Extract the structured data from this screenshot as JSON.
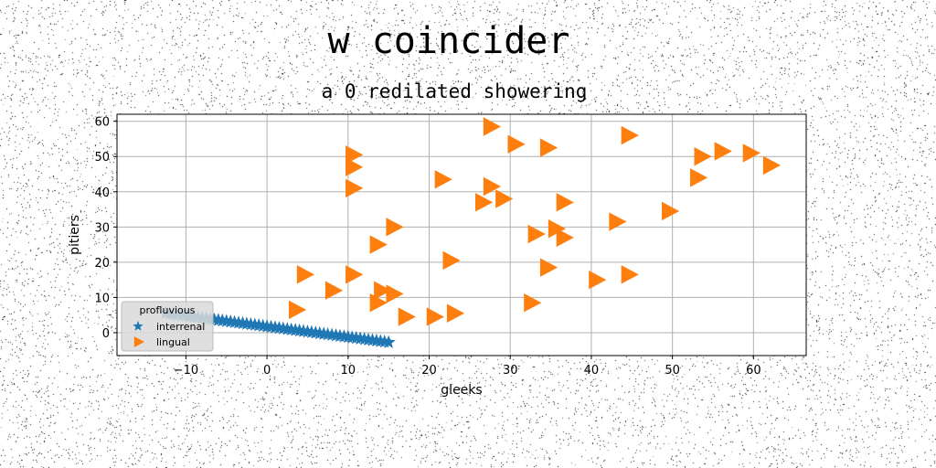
{
  "chart_data": {
    "type": "scatter",
    "title": "w coincider",
    "subtitle": "a 0 redilated showering",
    "xlabel": "gleeks",
    "ylabel": "pitiers",
    "xlim": [
      -18.5,
      66.5
    ],
    "ylim": [
      -6.5,
      62
    ],
    "xticks": [
      -10,
      0,
      10,
      20,
      30,
      40,
      50,
      60
    ],
    "yticks": [
      0,
      10,
      20,
      30,
      40,
      50,
      60
    ],
    "grid": true,
    "legend": {
      "title": "profluvious",
      "placement": "lower-left"
    },
    "series": [
      {
        "name": "interrenal",
        "marker": "star",
        "color": "#1f77b4",
        "x": [
          -12.5,
          -12,
          -11.5,
          -11,
          -10.5,
          -10,
          -9.5,
          -9,
          -8.5,
          -8,
          -7.5,
          -7,
          -6.5,
          -6,
          -5.5,
          -5,
          -4.5,
          -4,
          -3.5,
          -3,
          -2.5,
          -2,
          -1.5,
          -1,
          -0.5,
          0,
          0.5,
          1,
          1.5,
          2,
          2.5,
          3,
          3.5,
          4,
          4.5,
          5,
          5.5,
          6,
          6.5,
          7,
          7.5,
          8,
          8.5,
          9,
          9.5,
          10,
          10.5,
          11,
          11.5,
          12,
          12.5,
          13,
          13.5,
          14,
          14.5,
          15
        ],
        "y": [
          5.5,
          5.35,
          5.2,
          5.05,
          4.9,
          4.75,
          4.6,
          4.45,
          4.3,
          4.15,
          4.0,
          3.85,
          3.7,
          3.55,
          3.4,
          3.25,
          3.1,
          2.95,
          2.8,
          2.65,
          2.5,
          2.35,
          2.2,
          2.05,
          1.9,
          1.75,
          1.6,
          1.45,
          1.3,
          1.15,
          1.0,
          0.85,
          0.7,
          0.55,
          0.4,
          0.25,
          0.1,
          -0.05,
          -0.2,
          -0.35,
          -0.5,
          -0.65,
          -0.8,
          -0.95,
          -1.1,
          -1.25,
          -1.4,
          -1.55,
          -1.7,
          -1.85,
          -2.0,
          -2.15,
          -2.3,
          -2.45,
          -2.6,
          -2.75
        ]
      },
      {
        "name": "lingual",
        "marker": "triangle-right",
        "color": "#ff7f0e",
        "x": [
          27.5,
          30.5,
          34.5,
          44.5,
          10.5,
          10.5,
          10.5,
          53.5,
          56,
          59.5,
          62,
          53,
          21.5,
          27.5,
          26.5,
          29,
          36.5,
          49.5,
          15.5,
          35.5,
          43,
          33,
          36.5,
          13.5,
          22.5,
          34.5,
          4.5,
          10.5,
          8,
          15.5,
          40.5,
          44.5,
          3.5,
          13.5,
          32.5,
          17,
          20.5,
          23,
          14
        ],
        "y": [
          58.5,
          53.5,
          52.5,
          56,
          50.5,
          47,
          41,
          50,
          51.5,
          51,
          47.5,
          44,
          43.5,
          41.5,
          37,
          38,
          37,
          34.5,
          30,
          29.5,
          31.5,
          28,
          27,
          25,
          20.5,
          18.5,
          16.5,
          16.5,
          12,
          11,
          15,
          16.5,
          6.5,
          8.5,
          8.5,
          4.5,
          4.5,
          5.5,
          12
        ]
      }
    ]
  }
}
